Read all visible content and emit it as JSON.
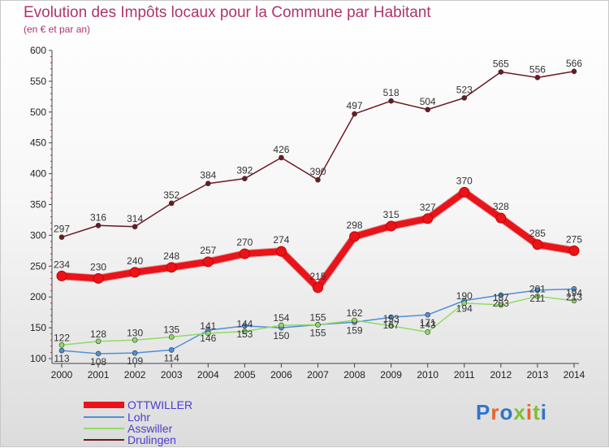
{
  "title": "Evolution des Impôts locaux pour la Commune par Habitant",
  "subtitle": "(en € et par an)",
  "logo": "Proxiti",
  "chart_data": {
    "type": "line",
    "x": [
      "2000",
      "2001",
      "2002",
      "2003",
      "2004",
      "2005",
      "2006",
      "2007",
      "2008",
      "2009",
      "2010",
      "2011",
      "2012",
      "2013",
      "2014"
    ],
    "ylim": [
      100,
      600
    ],
    "yticks": [
      100,
      150,
      200,
      250,
      300,
      350,
      400,
      450,
      500,
      550,
      600
    ],
    "grid": false,
    "legend_position": "bottom-left",
    "series": [
      {
        "name": "OTTWILLER",
        "color": "#e8141a",
        "values": [
          234,
          230,
          240,
          248,
          257,
          270,
          274,
          215,
          298,
          315,
          327,
          370,
          328,
          285,
          275
        ]
      },
      {
        "name": "Lohr",
        "color": "#4f8fd6",
        "values": [
          113,
          108,
          109,
          114,
          146,
          153,
          150,
          155,
          159,
          167,
          171,
          194,
          203,
          211,
          213
        ]
      },
      {
        "name": "Asswiller",
        "color": "#8fdb63",
        "values": [
          122,
          128,
          130,
          135,
          141,
          144,
          154,
          155,
          162,
          153,
          143,
          190,
          187,
          201,
          194
        ]
      },
      {
        "name": "Drulingen",
        "color": "#6b1a22",
        "values": [
          297,
          316,
          314,
          352,
          384,
          392,
          426,
          390,
          497,
          518,
          504,
          523,
          565,
          556,
          566
        ]
      }
    ]
  }
}
